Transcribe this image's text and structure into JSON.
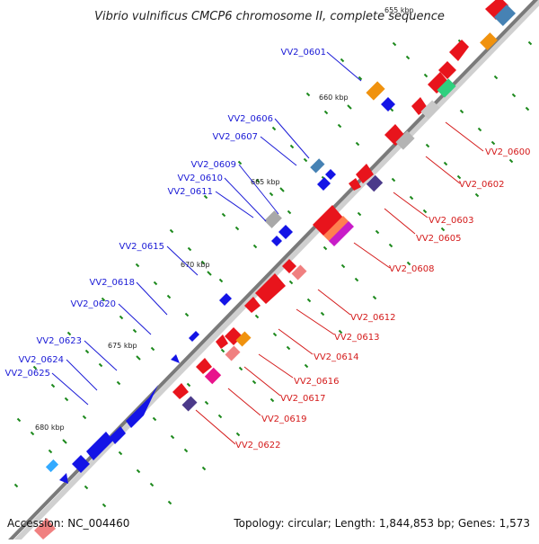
{
  "title": "Vibrio vulnificus CMCP6 chromosome II, complete sequence",
  "footer": {
    "accession": "Accession: NC_004460",
    "topology": "Topology: circular; Length: 1,844,853 bp; Genes: 1,573"
  },
  "ticks": [
    "655 kbp",
    "660 kbp",
    "665 kbp",
    "670 kbp",
    "675 kbp",
    "680 kbp"
  ],
  "labels_left": [
    "VV2_0601",
    "VV2_0606",
    "VV2_0607",
    "VV2_0609",
    "VV2_0610",
    "VV2_0611",
    "VV2_0615",
    "VV2_0618",
    "VV2_0620",
    "VV2_0623",
    "VV2_0624",
    "VV2_0625"
  ],
  "labels_right": [
    "VV2_0600",
    "VV2_0602",
    "VV2_0603",
    "VV2_0605",
    "VV2_0608",
    "VV2_0612",
    "VV2_0613",
    "VV2_0614",
    "VV2_0616",
    "VV2_0617",
    "VV2_0619",
    "VV2_0622"
  ],
  "colors": {
    "backbone": "#7a7a7a",
    "forward": "#e8141c",
    "reverse": "#1414e6",
    "tick": "#1e8a1e",
    "left_leader": "#1a1ad6",
    "right_leader": "#d41a1a"
  }
}
